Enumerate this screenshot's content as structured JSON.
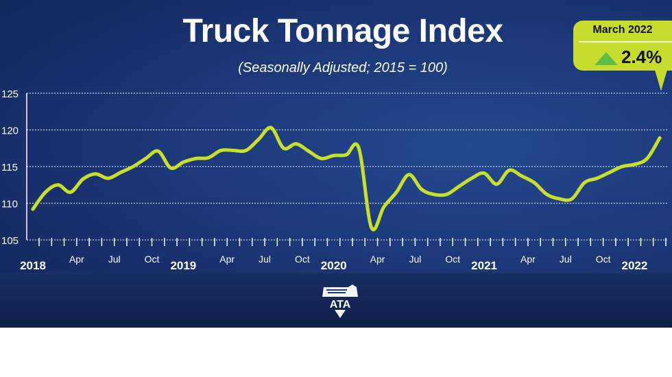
{
  "title": "Truck Tonnage Index",
  "subtitle": "(Seasonally Adjusted; 2015 = 100)",
  "callout": {
    "date": "March 2022",
    "change": "2.4%",
    "direction": "up",
    "arrow_color": "#5bbd4a",
    "bg_color": "#c8dc2e"
  },
  "logo_text": "ATA",
  "colors": {
    "line": "#c8e02a",
    "background": "#1c3a7c"
  },
  "chart_data": {
    "type": "line",
    "title": "Truck Tonnage Index",
    "subtitle": "(Seasonally Adjusted; 2015 = 100)",
    "xlabel": "",
    "ylabel": "",
    "ylim": [
      105,
      125
    ],
    "yticks": [
      "105",
      "110",
      "115",
      "120",
      "125"
    ],
    "ytick_values": [
      105,
      110,
      115,
      120,
      125
    ],
    "grid": true,
    "start": "2018-01",
    "end": "2022-03",
    "x_labels": [
      {
        "i": 0,
        "text": "2018",
        "year": true
      },
      {
        "i": 3,
        "text": "Apr"
      },
      {
        "i": 6,
        "text": "Jul"
      },
      {
        "i": 9,
        "text": "Oct"
      },
      {
        "i": 12,
        "text": "2019",
        "year": true
      },
      {
        "i": 15,
        "text": "Apr"
      },
      {
        "i": 18,
        "text": "Jul"
      },
      {
        "i": 21,
        "text": "Oct"
      },
      {
        "i": 24,
        "text": "2020",
        "year": true
      },
      {
        "i": 27,
        "text": "Apr"
      },
      {
        "i": 30,
        "text": "Jul"
      },
      {
        "i": 33,
        "text": "Oct"
      },
      {
        "i": 36,
        "text": "2021",
        "year": true
      },
      {
        "i": 39,
        "text": "Apr"
      },
      {
        "i": 42,
        "text": "Jul"
      },
      {
        "i": 45,
        "text": "Oct"
      },
      {
        "i": 48,
        "text": "2022",
        "year": true
      }
    ],
    "series": [
      {
        "name": "Truck Tonnage Index",
        "values": [
          109.2,
          111.5,
          112.5,
          111.5,
          113.3,
          114.0,
          113.4,
          114.2,
          115.0,
          116.1,
          117.1,
          114.8,
          115.6,
          116.1,
          116.2,
          117.2,
          117.2,
          117.2,
          118.7,
          120.3,
          117.5,
          118.1,
          117.1,
          116.1,
          116.5,
          116.6,
          117.5,
          106.7,
          109.5,
          111.5,
          113.9,
          111.9,
          111.2,
          111.2,
          112.3,
          113.4,
          114.1,
          112.6,
          114.5,
          113.7,
          112.8,
          111.2,
          110.6,
          110.6,
          112.8,
          113.4,
          114.2,
          115.0,
          115.3,
          116.1,
          118.9
        ]
      }
    ]
  }
}
